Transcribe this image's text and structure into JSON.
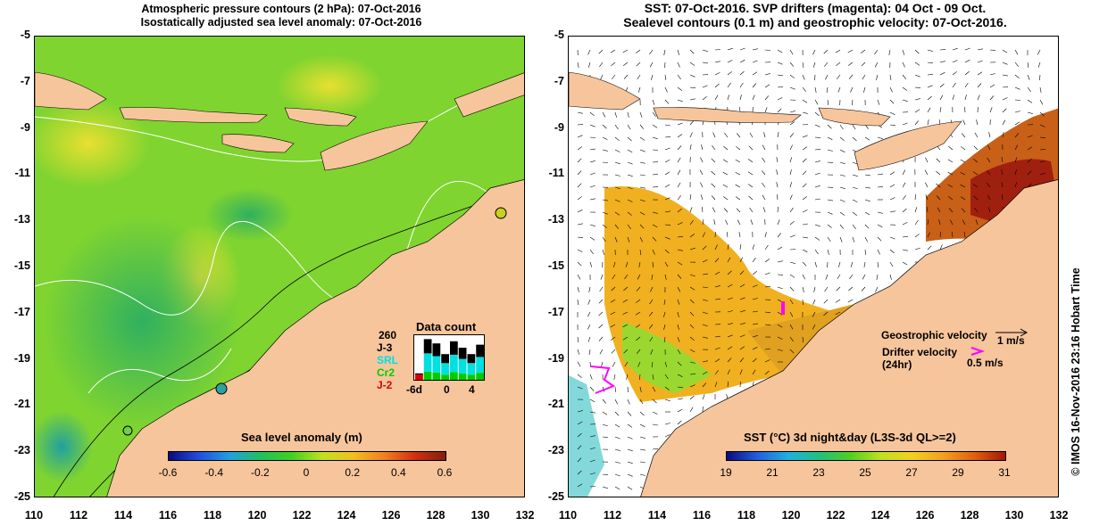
{
  "left_panel": {
    "title_line1": "Atmospheric pressure contours (2 hPa): 07-Oct-2016",
    "title_line2": "Isostatically adjusted sea level anomaly: 07-Oct-2016",
    "colorbar": {
      "title": "Sea level anomaly (m)",
      "ticks": [
        "-0.6",
        "-0.4",
        "-0.2",
        "0",
        "0.2",
        "0.4",
        "0.6"
      ]
    },
    "data_count": {
      "title": "Data count",
      "max_label": "260",
      "satellites": [
        {
          "name": "J-3",
          "color": "#000000"
        },
        {
          "name": "SRL",
          "color": "#00e0e0"
        },
        {
          "name": "Cr2",
          "color": "#00cc00"
        },
        {
          "name": "J-2",
          "color": "#dd0000"
        }
      ],
      "x_ticks": [
        "-6d",
        "0",
        "4"
      ],
      "bars_fraction": [
        0.15,
        0.95,
        0.85,
        0.6,
        0.9,
        0.75,
        0.6,
        0.82
      ]
    }
  },
  "right_panel": {
    "title_line1": "SST: 07-Oct-2016. SVP drifters (magenta): 04 Oct - 09 Oct.",
    "title_line2": "Sealevel contours (0.1 m) and geostrophic velocity: 07-Oct-2016.",
    "colorbar": {
      "title": "SST (°C) 3d night&day (L3S-3d QL>=2)",
      "ticks": [
        "19",
        "21",
        "23",
        "25",
        "27",
        "29",
        "31"
      ]
    },
    "legend": {
      "geostrophic_label": "Geostrophic velocity",
      "geostrophic_scale": "1 m/s",
      "drifter_label_1": "Drifter velocity",
      "drifter_label_2": "(24hr)",
      "drifter_scale": "0.5 m/s"
    }
  },
  "axes": {
    "y_ticks": [
      "-5",
      "-7",
      "-9",
      "-11",
      "-13",
      "-15",
      "-17",
      "-19",
      "-21",
      "-23",
      "-25"
    ],
    "x_ticks": [
      "110",
      "112",
      "114",
      "116",
      "118",
      "120",
      "122",
      "124",
      "126",
      "128",
      "130",
      "132"
    ]
  },
  "watermark": "© IMOS 16-Nov-2016 23:16 Hobart Time",
  "colors": {
    "land": "#f7c59c",
    "sla_background": "#7fd430",
    "sst_orange": "#f0a020",
    "sst_red": "#b02010",
    "drifter": "#ff00ff"
  }
}
